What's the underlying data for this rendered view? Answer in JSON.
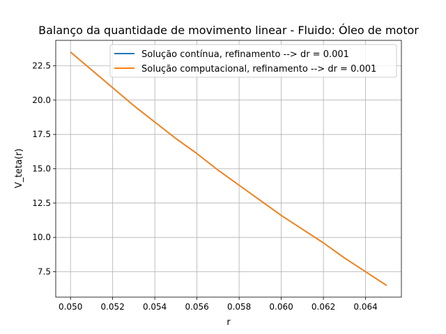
{
  "chart_data": {
    "type": "line",
    "title": "Balanço da quantidade de movimento linear - Fluido: Óleo de motor",
    "xlabel": "r",
    "ylabel": "V_teta(r)",
    "xlim": [
      0.0493,
      0.0657
    ],
    "ylim": [
      5.65,
      24.35
    ],
    "xticks": [
      0.05,
      0.052,
      0.054,
      0.056,
      0.058,
      0.06,
      0.062,
      0.064
    ],
    "xtick_labels": [
      "0.050",
      "0.052",
      "0.054",
      "0.056",
      "0.058",
      "0.060",
      "0.062",
      "0.064"
    ],
    "yticks": [
      7.5,
      10.0,
      12.5,
      15.0,
      17.5,
      20.0,
      22.5
    ],
    "ytick_labels": [
      "7.5",
      "10.0",
      "12.5",
      "15.0",
      "17.5",
      "20.0",
      "22.5"
    ],
    "grid": true,
    "legend_position": "top-right",
    "series": [
      {
        "name": "Solução contínua, refinamento --> dr = 0.001",
        "color": "#1f77b4",
        "x": [
          0.05,
          0.051,
          0.052,
          0.053,
          0.054,
          0.055,
          0.056,
          0.057,
          0.058,
          0.059,
          0.06,
          0.061,
          0.062,
          0.063,
          0.064,
          0.065
        ],
        "y": [
          23.5,
          22.2,
          20.9,
          19.6,
          18.4,
          17.2,
          16.1,
          14.9,
          13.8,
          12.7,
          11.6,
          10.6,
          9.6,
          8.5,
          7.5,
          6.5
        ]
      },
      {
        "name": "Solução computacional, refinamento --> dr = 0.001",
        "color": "#ff7f0e",
        "x": [
          0.05,
          0.051,
          0.052,
          0.053,
          0.054,
          0.055,
          0.056,
          0.057,
          0.058,
          0.059,
          0.06,
          0.061,
          0.062,
          0.063,
          0.064,
          0.065
        ],
        "y": [
          23.5,
          22.2,
          20.9,
          19.6,
          18.4,
          17.2,
          16.1,
          14.9,
          13.8,
          12.7,
          11.6,
          10.6,
          9.6,
          8.5,
          7.5,
          6.5
        ]
      }
    ]
  }
}
